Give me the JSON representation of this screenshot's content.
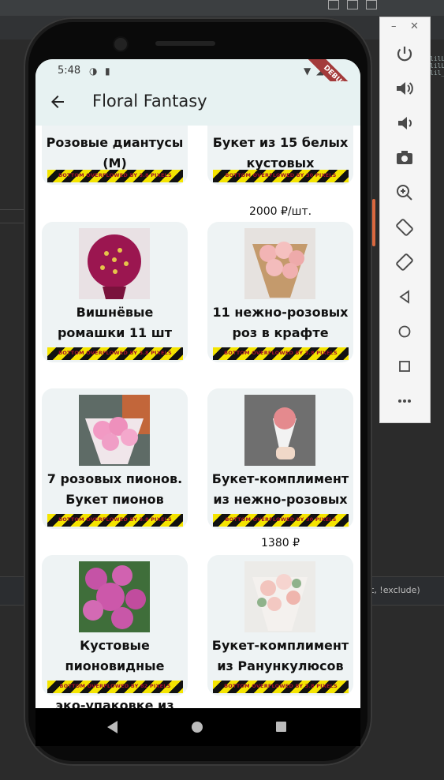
{
  "status_bar": {
    "time": "5:48",
    "debug_label": "DEBUG"
  },
  "app_bar": {
    "title": "Floral Fantasy"
  },
  "overflow_labels": {
    "o38": "BOTTOM OVERFLOWED BY 3.8 PIXELS",
    "o30": "BOTTOM OVERFLOWED BY 30 PIXELS",
    "o82": "BOTTOM OVERFLOWED BY 82 PIXELS"
  },
  "products": [
    {
      "name": "Розовые диантусы (M)",
      "price": ""
    },
    {
      "name": "Букет из 15 белых кустовых",
      "price": "2000 ₽/шт."
    },
    {
      "name": "Вишнёвые ромашки 11 шт",
      "price": ""
    },
    {
      "name": "11 нежно-розовых роз в крафте",
      "price": ""
    },
    {
      "name": "7 розовых пионов. Букет пионов",
      "price": ""
    },
    {
      "name": "Букет-комплимент из нежно-розовых",
      "price": "1380 ₽"
    },
    {
      "name": "Кустовые пионовидные розы",
      "price": "",
      "extra": "эко-упаковке из"
    },
    {
      "name": "Букет-комплимент из Ранункулюсов",
      "price": ""
    }
  ],
  "ide": {
    "search_hint": "t, !exclude)",
    "code_fragment": "lilL\nlilL\nlil_"
  },
  "colors": {
    "app_bar_bg": "#e7f2f2",
    "card_bg": "#eef3f4",
    "overflow_yellow": "#f4e400",
    "overflow_text": "#a0102a"
  }
}
